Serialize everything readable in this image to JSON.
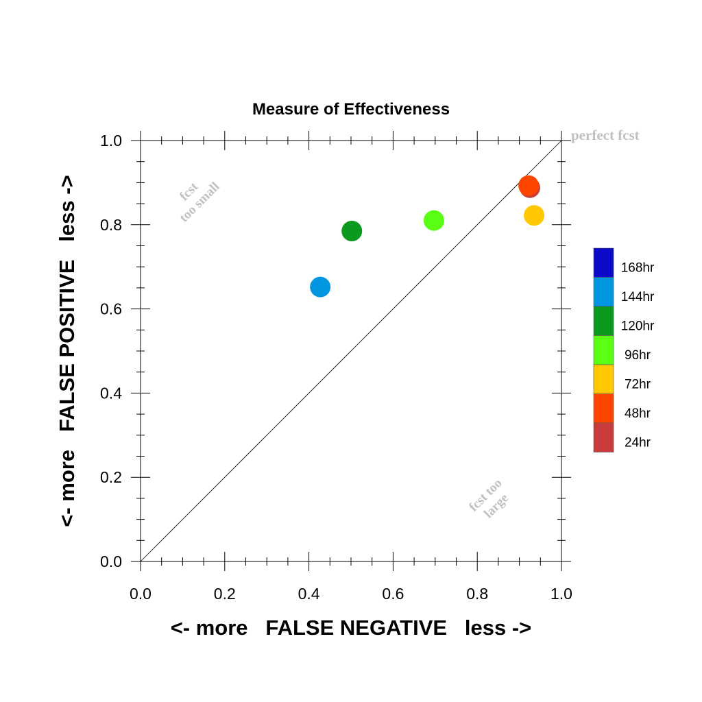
{
  "chart_data": {
    "type": "scatter",
    "title": "Measure of Effectiveness",
    "xlabel": "<- more   FALSE NEGATIVE   less ->",
    "ylabel": "<- more   FALSE POSITIVE   less ->",
    "xlim": [
      0.0,
      1.0
    ],
    "ylim": [
      0.0,
      1.0
    ],
    "x_ticks": [
      "0.0",
      "0.2",
      "0.4",
      "0.6",
      "0.8",
      "1.0"
    ],
    "y_ticks": [
      "0.0",
      "0.2",
      "0.4",
      "0.6",
      "0.8",
      "1.0"
    ],
    "grid": false,
    "diagonal_line": true,
    "annotations": {
      "perfect": "perfect fcst",
      "small_line1": "fcst",
      "small_line2": "too small",
      "large_line1": "fcst too",
      "large_line2": "large"
    },
    "legend_position": "right",
    "legend": [
      {
        "label": "168hr",
        "color": "#0a0ac8"
      },
      {
        "label": "144hr",
        "color": "#0096e0"
      },
      {
        "label": "120hr",
        "color": "#0a9a1e"
      },
      {
        "label": "96hr",
        "color": "#5aff14"
      },
      {
        "label": "72hr",
        "color": "#ffc800"
      },
      {
        "label": "48hr",
        "color": "#ff4600"
      },
      {
        "label": "24hr",
        "color": "#c83c3c"
      }
    ],
    "series": [
      {
        "name": "24hr",
        "color": "#c83c3c",
        "x": 0.925,
        "y": 0.888
      },
      {
        "name": "48hr",
        "color": "#ff4600",
        "x": 0.922,
        "y": 0.893
      },
      {
        "name": "72hr",
        "color": "#ffc800",
        "x": 0.935,
        "y": 0.822
      },
      {
        "name": "96hr",
        "color": "#5aff14",
        "x": 0.697,
        "y": 0.81
      },
      {
        "name": "120hr",
        "color": "#0a9a1e",
        "x": 0.502,
        "y": 0.785
      },
      {
        "name": "144hr",
        "color": "#0096e0",
        "x": 0.427,
        "y": 0.652
      }
    ]
  }
}
